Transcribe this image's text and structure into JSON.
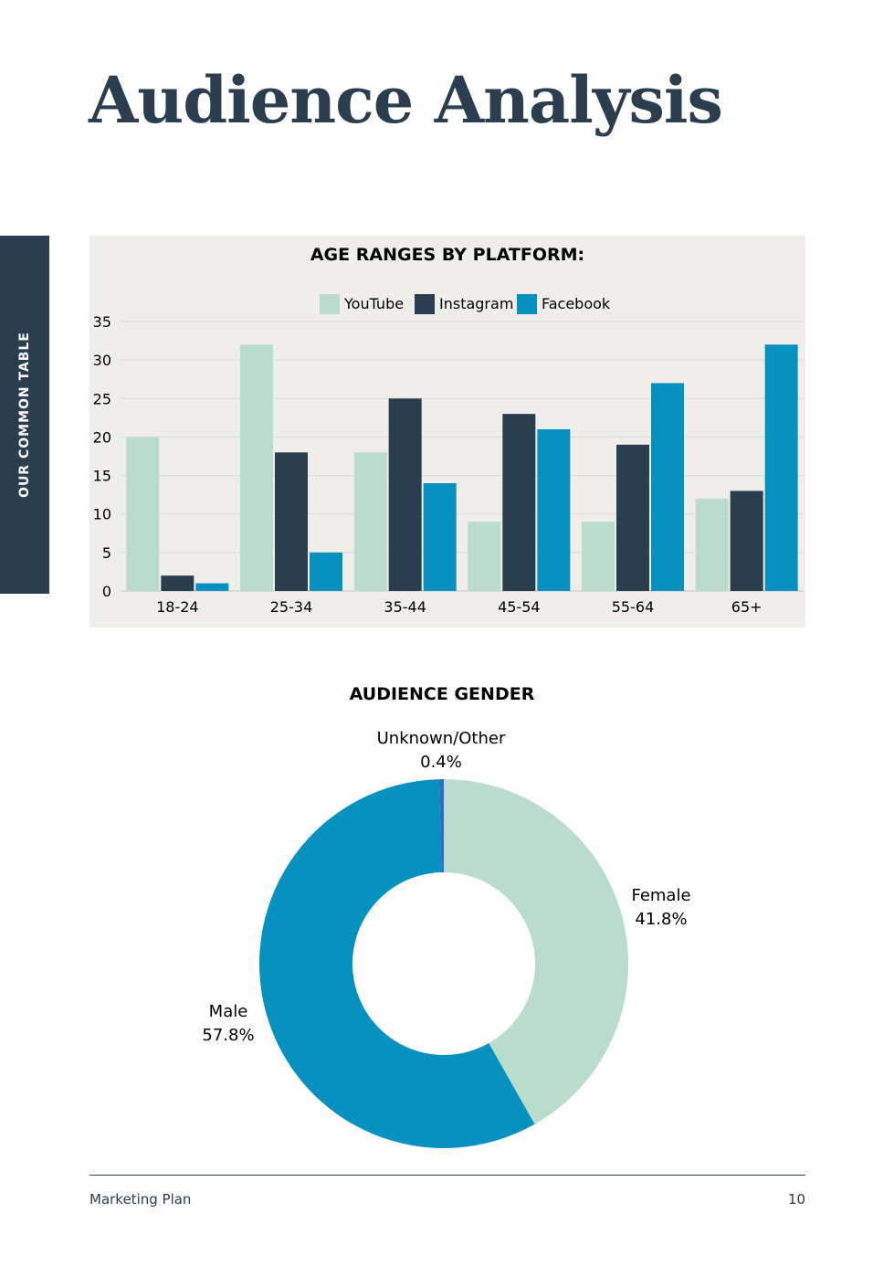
{
  "page": {
    "title": "Audience Analysis",
    "side_tab": "OUR COMMON TABLE",
    "footer_left": "Marketing Plan",
    "footer_right": "10"
  },
  "colors": {
    "navy": "#2b3e4f",
    "youtube": "#b9dccd",
    "instagram": "#2b3e4f",
    "facebook": "#0691c0",
    "panel": "#efeeea",
    "unknown": "#2a6fc4"
  },
  "chart_data": [
    {
      "type": "bar",
      "title": "AGE RANGES BY PLATFORM:",
      "categories": [
        "18-24",
        "25-34",
        "35-44",
        "45-54",
        "55-64",
        "65+"
      ],
      "series": [
        {
          "name": "YouTube",
          "values": [
            20,
            32,
            18,
            9,
            9,
            12
          ]
        },
        {
          "name": "Instagram",
          "values": [
            2,
            18,
            25,
            23,
            19,
            13
          ]
        },
        {
          "name": "Facebook",
          "values": [
            1,
            5,
            14,
            21,
            27,
            32
          ]
        }
      ],
      "ylim": [
        0,
        35
      ],
      "yticks": [
        "0",
        "5",
        "10",
        "15",
        "20",
        "25",
        "30",
        "35"
      ],
      "legend": "top-center",
      "grid": true
    },
    {
      "type": "pie",
      "title": "AUDIENCE GENDER",
      "donut": true,
      "slices": [
        {
          "label": "Female",
          "value": 41.8,
          "display": "41.8%"
        },
        {
          "label": "Male",
          "value": 57.8,
          "display": "57.8%"
        },
        {
          "label": "Unknown/Other",
          "value": 0.4,
          "display": "0.4%"
        }
      ]
    }
  ]
}
